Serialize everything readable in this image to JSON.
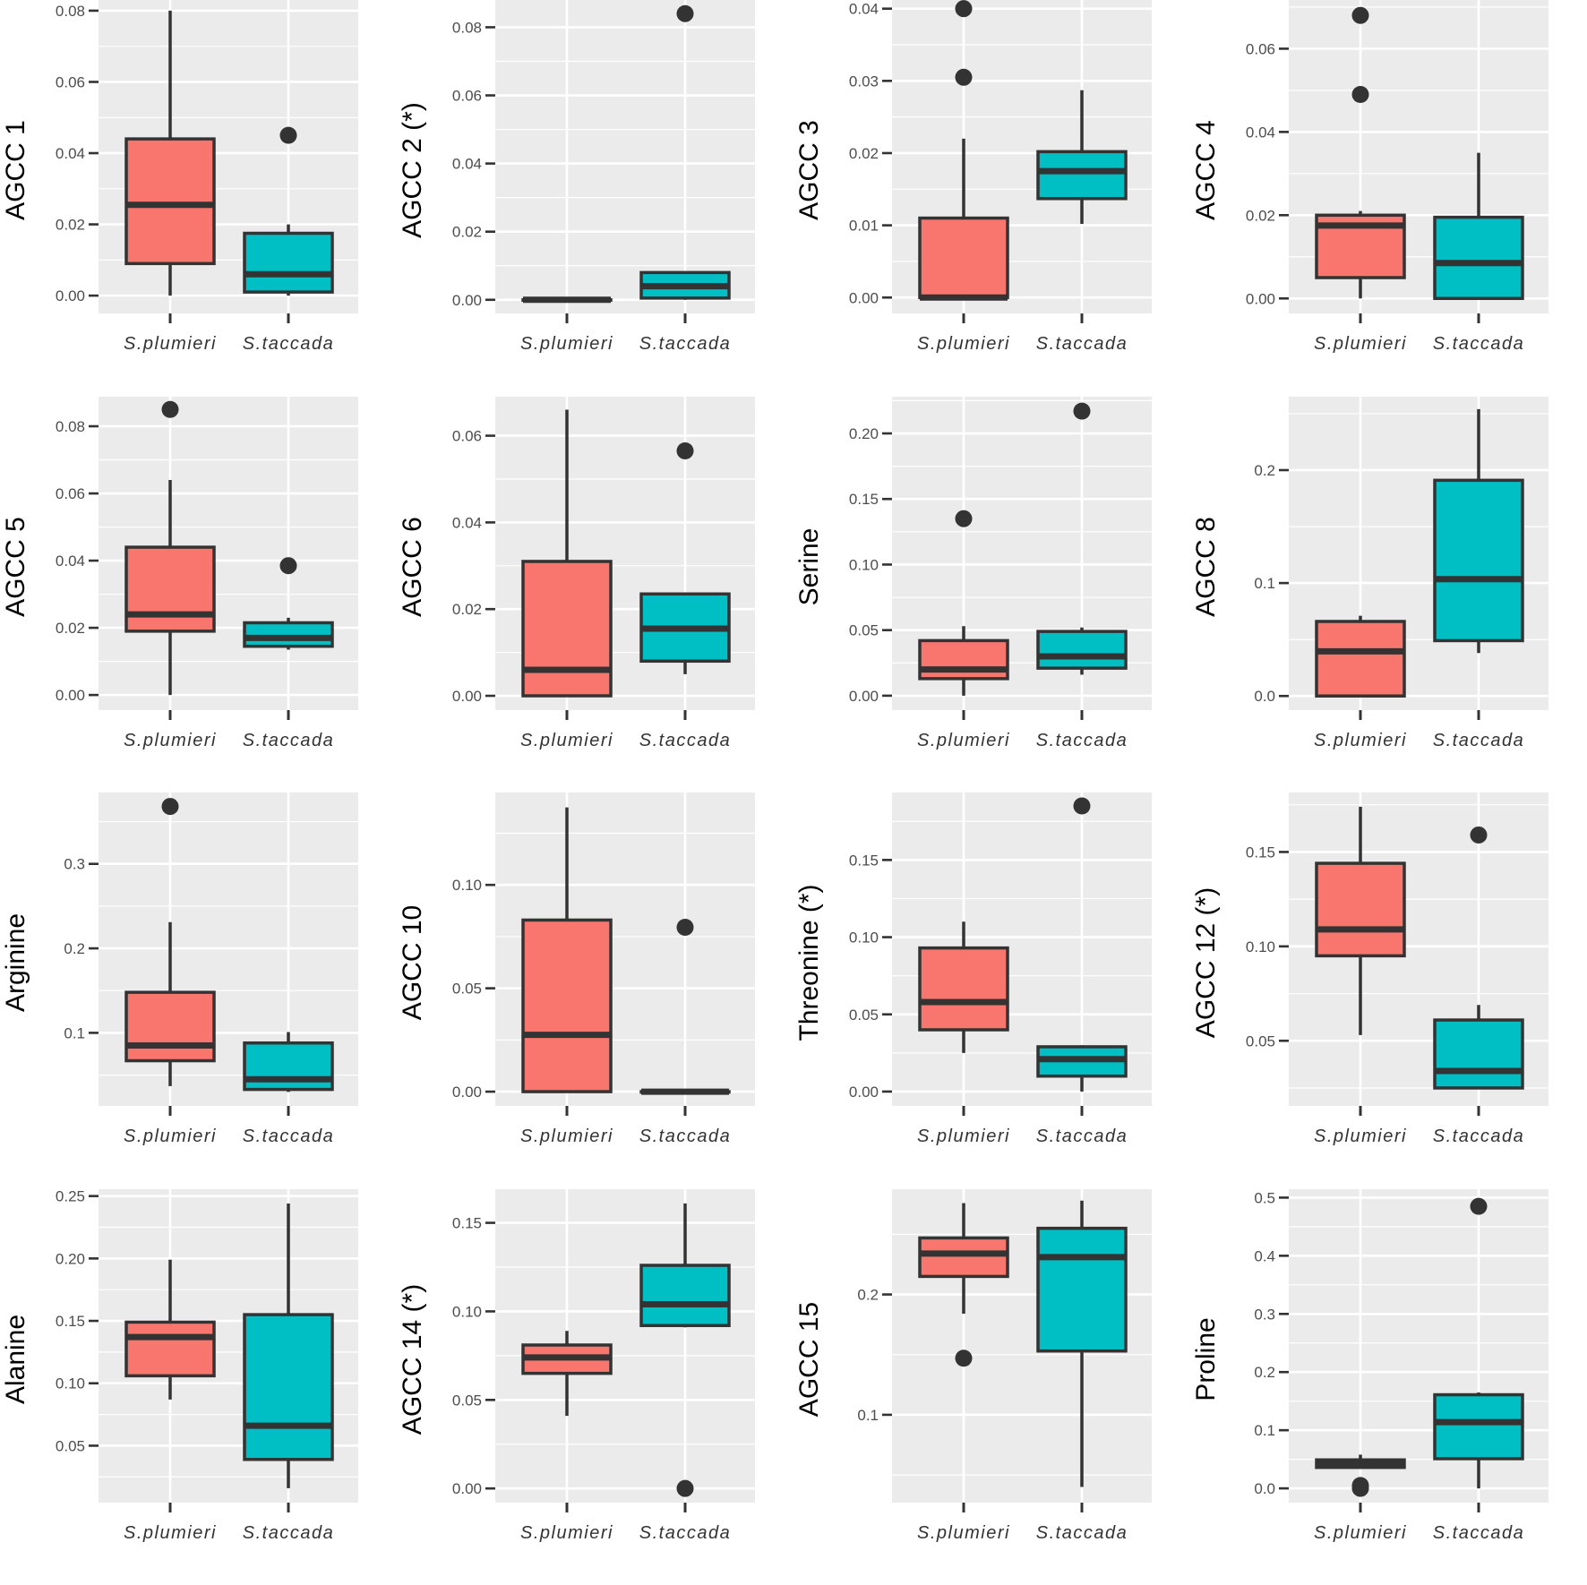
{
  "colors": {
    "panel_bg": "#EBEBEB",
    "grid": "#FFFFFF",
    "S.plumieri": "#F8766D",
    "S.taccada": "#00BFC4",
    "outline": "#333333",
    "axis_ticks": "#333333"
  },
  "chart_data": [
    {
      "type": "box",
      "ylabel": "AGCC 1",
      "categories": [
        "S.plumieri",
        "S.taccada"
      ],
      "ylim": [
        -0.005,
        0.083
      ],
      "yticks": [
        0.0,
        0.02,
        0.04,
        0.06,
        0.08
      ],
      "ytick_labels": [
        "0.00",
        "0.02",
        "0.04",
        "0.06",
        "0.08"
      ],
      "boxes": [
        {
          "min": 0.0,
          "q1": 0.009,
          "median": 0.0255,
          "q3": 0.044,
          "max": 0.08,
          "outliers": []
        },
        {
          "min": 0.0,
          "q1": 0.001,
          "median": 0.006,
          "q3": 0.0175,
          "max": 0.02,
          "outliers": [
            0.045
          ]
        }
      ]
    },
    {
      "type": "box",
      "ylabel": "AGCC 2 (*)",
      "categories": [
        "S.plumieri",
        "S.taccada"
      ],
      "ylim": [
        -0.004,
        0.088
      ],
      "yticks": [
        0.0,
        0.02,
        0.04,
        0.06,
        0.08
      ],
      "ytick_labels": [
        "0.00",
        "0.02",
        "0.04",
        "0.06",
        "0.08"
      ],
      "boxes": [
        {
          "min": 0.0,
          "q1": 0.0,
          "median": 0.0,
          "q3": 0.0,
          "max": 0.0,
          "outliers": []
        },
        {
          "min": 0.0,
          "q1": 0.0005,
          "median": 0.004,
          "q3": 0.008,
          "max": 0.008,
          "outliers": [
            0.084
          ]
        }
      ]
    },
    {
      "type": "box",
      "ylabel": "AGCC 3",
      "categories": [
        "S.plumieri",
        "S.taccada"
      ],
      "ylim": [
        -0.0022,
        0.0412
      ],
      "yticks": [
        0.0,
        0.01,
        0.02,
        0.03,
        0.04
      ],
      "ytick_labels": [
        "0.00",
        "0.01",
        "0.02",
        "0.03",
        "0.04"
      ],
      "boxes": [
        {
          "min": 0.0,
          "q1": 0.0,
          "median": 0.0,
          "q3": 0.011,
          "max": 0.022,
          "outliers": [
            0.0305,
            0.04
          ]
        },
        {
          "min": 0.0102,
          "q1": 0.0137,
          "median": 0.0175,
          "q3": 0.0202,
          "max": 0.0287,
          "outliers": []
        }
      ]
    },
    {
      "type": "box",
      "ylabel": "AGCC 4",
      "categories": [
        "S.plumieri",
        "S.taccada"
      ],
      "ylim": [
        -0.0036,
        0.0717
      ],
      "yticks": [
        0.0,
        0.02,
        0.04,
        0.06
      ],
      "ytick_labels": [
        "0.00",
        "0.02",
        "0.04",
        "0.06"
      ],
      "boxes": [
        {
          "min": 0.0,
          "q1": 0.005,
          "median": 0.0175,
          "q3": 0.02,
          "max": 0.021,
          "outliers": [
            0.049,
            0.068
          ]
        },
        {
          "min": 0.0,
          "q1": 0.0,
          "median": 0.0085,
          "q3": 0.0195,
          "max": 0.035,
          "outliers": []
        }
      ]
    },
    {
      "type": "box",
      "ylabel": "AGCC 5",
      "categories": [
        "S.plumieri",
        "S.taccada"
      ],
      "ylim": [
        -0.0045,
        0.0888
      ],
      "yticks": [
        0.0,
        0.02,
        0.04,
        0.06,
        0.08
      ],
      "ytick_labels": [
        "0.00",
        "0.02",
        "0.04",
        "0.06",
        "0.08"
      ],
      "boxes": [
        {
          "min": 0.0,
          "q1": 0.019,
          "median": 0.024,
          "q3": 0.044,
          "max": 0.064,
          "outliers": [
            0.085
          ]
        },
        {
          "min": 0.0135,
          "q1": 0.0145,
          "median": 0.017,
          "q3": 0.0215,
          "max": 0.023,
          "outliers": [
            0.0385
          ]
        }
      ]
    },
    {
      "type": "box",
      "ylabel": "AGCC 6",
      "categories": [
        "S.plumieri",
        "S.taccada"
      ],
      "ylim": [
        -0.0033,
        0.069
      ],
      "yticks": [
        0.0,
        0.02,
        0.04,
        0.06
      ],
      "ytick_labels": [
        "0.00",
        "0.02",
        "0.04",
        "0.06"
      ],
      "boxes": [
        {
          "min": 0.0,
          "q1": 0.0,
          "median": 0.006,
          "q3": 0.031,
          "max": 0.066,
          "outliers": []
        },
        {
          "min": 0.005,
          "q1": 0.008,
          "median": 0.0155,
          "q3": 0.0235,
          "max": 0.0235,
          "outliers": [
            0.0565
          ]
        }
      ]
    },
    {
      "type": "box",
      "ylabel": "Serine",
      "categories": [
        "S.plumieri",
        "S.taccada"
      ],
      "ylim": [
        -0.011,
        0.228
      ],
      "yticks": [
        0.0,
        0.05,
        0.1,
        0.15,
        0.2
      ],
      "ytick_labels": [
        "0.00",
        "0.05",
        "0.10",
        "0.15",
        "0.20"
      ],
      "boxes": [
        {
          "min": 0.0,
          "q1": 0.013,
          "median": 0.02,
          "q3": 0.042,
          "max": 0.053,
          "outliers": [
            0.135
          ]
        },
        {
          "min": 0.016,
          "q1": 0.021,
          "median": 0.03,
          "q3": 0.049,
          "max": 0.052,
          "outliers": [
            0.217
          ]
        }
      ]
    },
    {
      "type": "box",
      "ylabel": "AGCC 8",
      "categories": [
        "S.plumieri",
        "S.taccada"
      ],
      "ylim": [
        -0.0125,
        0.265
      ],
      "yticks": [
        0.0,
        0.1,
        0.2
      ],
      "ytick_labels": [
        "0.0",
        "0.1",
        "0.2"
      ],
      "boxes": [
        {
          "min": 0.0,
          "q1": 0.0,
          "median": 0.0395,
          "q3": 0.066,
          "max": 0.071,
          "outliers": []
        },
        {
          "min": 0.038,
          "q1": 0.049,
          "median": 0.1035,
          "q3": 0.191,
          "max": 0.254,
          "outliers": []
        }
      ]
    },
    {
      "type": "box",
      "ylabel": "Arginine",
      "categories": [
        "S.plumieri",
        "S.taccada"
      ],
      "ylim": [
        0.0135,
        0.3845
      ],
      "yticks": [
        0.1,
        0.2,
        0.3
      ],
      "ytick_labels": [
        "0.1",
        "0.2",
        "0.3"
      ],
      "boxes": [
        {
          "min": 0.037,
          "q1": 0.067,
          "median": 0.085,
          "q3": 0.148,
          "max": 0.231,
          "outliers": [
            0.368
          ]
        },
        {
          "min": 0.03,
          "q1": 0.033,
          "median": 0.045,
          "q3": 0.088,
          "max": 0.101,
          "outliers": []
        }
      ]
    },
    {
      "type": "box",
      "ylabel": "AGCC 10",
      "categories": [
        "S.plumieri",
        "S.taccada"
      ],
      "ylim": [
        -0.0069,
        0.1447
      ],
      "yticks": [
        0.0,
        0.05,
        0.1
      ],
      "ytick_labels": [
        "0.00",
        "0.05",
        "0.10"
      ],
      "boxes": [
        {
          "min": 0.0,
          "q1": 0.0,
          "median": 0.0275,
          "q3": 0.083,
          "max": 0.1375,
          "outliers": []
        },
        {
          "min": 0.0,
          "q1": 0.0,
          "median": 0.0,
          "q3": 0.0,
          "max": 0.0,
          "outliers": [
            0.0795
          ]
        }
      ]
    },
    {
      "type": "box",
      "ylabel": "Threonine (*)",
      "categories": [
        "S.plumieri",
        "S.taccada"
      ],
      "ylim": [
        -0.0093,
        0.1937
      ],
      "yticks": [
        0.0,
        0.05,
        0.1,
        0.15
      ],
      "ytick_labels": [
        "0.00",
        "0.05",
        "0.10",
        "0.15"
      ],
      "boxes": [
        {
          "min": 0.025,
          "q1": 0.04,
          "median": 0.058,
          "q3": 0.093,
          "max": 0.11,
          "outliers": []
        },
        {
          "min": 0.0,
          "q1": 0.01,
          "median": 0.021,
          "q3": 0.029,
          "max": 0.03,
          "outliers": [
            0.185
          ]
        }
      ]
    },
    {
      "type": "box",
      "ylabel": "AGCC 12 (*)",
      "categories": [
        "S.plumieri",
        "S.taccada"
      ],
      "ylim": [
        0.0155,
        0.1815
      ],
      "yticks": [
        0.05,
        0.1,
        0.15
      ],
      "ytick_labels": [
        "0.05",
        "0.10",
        "0.15"
      ],
      "boxes": [
        {
          "min": 0.053,
          "q1": 0.095,
          "median": 0.109,
          "q3": 0.144,
          "max": 0.174,
          "outliers": []
        },
        {
          "min": 0.025,
          "q1": 0.025,
          "median": 0.034,
          "q3": 0.061,
          "max": 0.069,
          "outliers": [
            0.159
          ]
        }
      ]
    },
    {
      "type": "box",
      "ylabel": "Alanine",
      "categories": [
        "S.plumieri",
        "S.taccada"
      ],
      "ylim": [
        0.0044,
        0.2555
      ],
      "yticks": [
        0.05,
        0.1,
        0.15,
        0.2,
        0.25
      ],
      "ytick_labels": [
        "0.05",
        "0.10",
        "0.15",
        "0.20",
        "0.25"
      ],
      "boxes": [
        {
          "min": 0.087,
          "q1": 0.106,
          "median": 0.137,
          "q3": 0.149,
          "max": 0.199,
          "outliers": []
        },
        {
          "min": 0.016,
          "q1": 0.039,
          "median": 0.066,
          "q3": 0.155,
          "max": 0.244,
          "outliers": []
        }
      ]
    },
    {
      "type": "box",
      "ylabel": "AGCC 14 (*)",
      "categories": [
        "S.plumieri",
        "S.taccada"
      ],
      "ylim": [
        -0.008,
        0.169
      ],
      "yticks": [
        0.0,
        0.05,
        0.1,
        0.15
      ],
      "ytick_labels": [
        "0.00",
        "0.05",
        "0.10",
        "0.15"
      ],
      "boxes": [
        {
          "min": 0.041,
          "q1": 0.065,
          "median": 0.074,
          "q3": 0.081,
          "max": 0.089,
          "outliers": []
        },
        {
          "min": 0.091,
          "q1": 0.092,
          "median": 0.104,
          "q3": 0.126,
          "max": 0.161,
          "outliers": [
            0.0
          ]
        }
      ]
    },
    {
      "type": "box",
      "ylabel": "AGCC 15",
      "categories": [
        "S.plumieri",
        "S.taccada"
      ],
      "ylim": [
        0.027,
        0.2875
      ],
      "yticks": [
        0.1,
        0.2
      ],
      "ytick_labels": [
        "0.1",
        "0.2"
      ],
      "boxes": [
        {
          "min": 0.184,
          "q1": 0.215,
          "median": 0.234,
          "q3": 0.247,
          "max": 0.276,
          "outliers": [
            0.147
          ]
        },
        {
          "min": 0.04,
          "q1": 0.153,
          "median": 0.231,
          "q3": 0.255,
          "max": 0.278,
          "outliers": []
        }
      ]
    },
    {
      "type": "box",
      "ylabel": "Proline",
      "categories": [
        "S.plumieri",
        "S.taccada"
      ],
      "ylim": [
        -0.0245,
        0.5145
      ],
      "yticks": [
        0.0,
        0.1,
        0.2,
        0.3,
        0.4,
        0.5
      ],
      "ytick_labels": [
        "0.0",
        "0.1",
        "0.2",
        "0.3",
        "0.4",
        "0.5"
      ],
      "boxes": [
        {
          "min": 0.036,
          "q1": 0.036,
          "median": 0.042,
          "q3": 0.049,
          "max": 0.058,
          "outliers": [
            0.0,
            0.005
          ]
        },
        {
          "min": 0.0,
          "q1": 0.051,
          "median": 0.114,
          "q3": 0.161,
          "max": 0.165,
          "outliers": [
            0.485
          ]
        }
      ]
    }
  ]
}
